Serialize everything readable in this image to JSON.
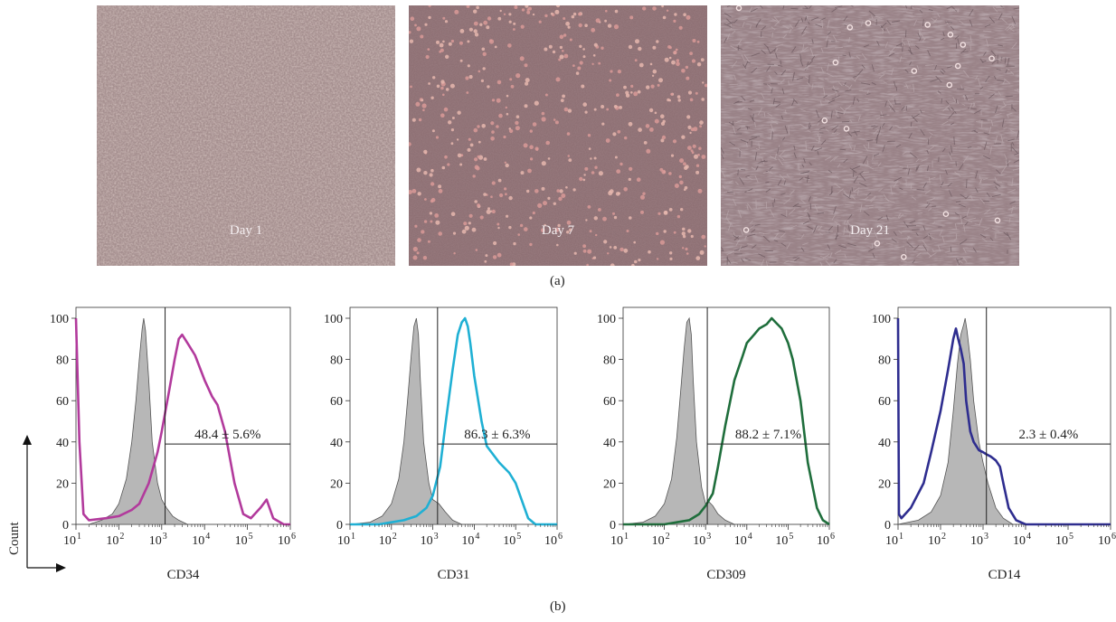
{
  "photos": [
    {
      "label": "Day 1"
    },
    {
      "label": "Day 7"
    },
    {
      "label": "Day 21"
    }
  ],
  "panel_a": "(a)",
  "panel_b": "(b)",
  "count_label": "Count",
  "colors": {
    "CD34": "#b23a9c",
    "CD31": "#1fb0d4",
    "CD309": "#1f6e3c",
    "CD14": "#2e2d8f",
    "control_fill": "#b7b7b7"
  },
  "chart_data": [
    {
      "type": "area",
      "title": "",
      "xlabel": "CD34",
      "ylabel": "Count",
      "xscale": "log",
      "xlim": [
        10,
        1000000
      ],
      "ylim": [
        0,
        100
      ],
      "x_ticks": [
        "10^1",
        "10^2",
        "10^3",
        "10^4",
        "10^5",
        "10^6"
      ],
      "y_ticks": [
        0,
        20,
        40,
        60,
        80,
        100
      ],
      "gate_x": 1200,
      "gate_y": 39,
      "annotation": "48.4 ± 5.6%",
      "color": "#b23a9c",
      "series": [
        {
          "role": "control",
          "x": [
            10,
            20,
            40,
            70,
            100,
            150,
            200,
            250,
            300,
            350,
            380,
            420,
            500,
            600,
            800,
            1000,
            1300,
            1800,
            2500,
            4000,
            10000
          ],
          "values": [
            0,
            0,
            2,
            5,
            10,
            22,
            40,
            60,
            80,
            95,
            100,
            94,
            70,
            40,
            20,
            12,
            8,
            4,
            2,
            0,
            0
          ]
        },
        {
          "role": "stain",
          "x": [
            10,
            12,
            15,
            20,
            50,
            100,
            200,
            300,
            500,
            800,
            1000,
            1500,
            2000,
            2500,
            3000,
            4000,
            6000,
            10000,
            15000,
            20000,
            30000,
            50000,
            80000,
            120000,
            200000,
            280000,
            400000,
            700000,
            1000000
          ],
          "values": [
            100,
            40,
            5,
            2,
            3,
            4,
            7,
            10,
            20,
            35,
            45,
            65,
            80,
            90,
            92,
            88,
            82,
            70,
            62,
            58,
            45,
            20,
            5,
            3,
            8,
            12,
            3,
            0,
            0
          ]
        }
      ]
    },
    {
      "type": "area",
      "title": "",
      "xlabel": "CD31",
      "ylabel": "Count",
      "xscale": "log",
      "xlim": [
        10,
        1000000
      ],
      "ylim": [
        0,
        100
      ],
      "x_ticks": [
        "10^1",
        "10^2",
        "10^3",
        "10^4",
        "10^5",
        "10^6"
      ],
      "y_ticks": [
        0,
        20,
        40,
        60,
        80,
        100
      ],
      "gate_x": 1300,
      "gate_y": 39,
      "annotation": "86.3 ± 6.3%",
      "color": "#1fb0d4",
      "series": [
        {
          "role": "control",
          "x": [
            10,
            30,
            60,
            100,
            150,
            200,
            250,
            300,
            350,
            400,
            450,
            500,
            600,
            800,
            1000,
            1400,
            2000,
            3000,
            5000,
            10000
          ],
          "values": [
            0,
            1,
            4,
            10,
            22,
            40,
            62,
            82,
            96,
            100,
            92,
            70,
            40,
            20,
            12,
            10,
            6,
            2,
            0,
            0
          ]
        },
        {
          "role": "stain",
          "x": [
            10,
            50,
            100,
            200,
            400,
            700,
            1000,
            1500,
            2000,
            3000,
            4000,
            5000,
            6000,
            7000,
            8000,
            10000,
            15000,
            20000,
            40000,
            70000,
            100000,
            150000,
            200000,
            300000,
            1000000
          ],
          "values": [
            0,
            0,
            1,
            2,
            4,
            8,
            14,
            28,
            48,
            75,
            92,
            98,
            100,
            96,
            88,
            72,
            50,
            38,
            30,
            25,
            20,
            10,
            3,
            0,
            0
          ]
        }
      ]
    },
    {
      "type": "area",
      "title": "",
      "xlabel": "CD309",
      "ylabel": "Count",
      "xscale": "log",
      "xlim": [
        10,
        1000000
      ],
      "ylim": [
        0,
        100
      ],
      "x_ticks": [
        "10^1",
        "10^2",
        "10^3",
        "10^4",
        "10^5",
        "10^6"
      ],
      "y_ticks": [
        0,
        20,
        40,
        60,
        80,
        100
      ],
      "gate_x": 1100,
      "gate_y": 39,
      "annotation": "88.2 ± 7.1%",
      "color": "#1f6e3c",
      "series": [
        {
          "role": "control",
          "x": [
            10,
            30,
            60,
            100,
            150,
            200,
            250,
            300,
            350,
            400,
            450,
            500,
            600,
            800,
            1000,
            1200,
            1500,
            2000,
            3000,
            5000,
            10000
          ],
          "values": [
            0,
            1,
            4,
            10,
            22,
            42,
            65,
            85,
            98,
            100,
            92,
            70,
            40,
            18,
            10,
            11,
            9,
            5,
            2,
            0,
            0
          ]
        },
        {
          "role": "stain",
          "x": [
            10,
            50,
            100,
            200,
            400,
            700,
            1000,
            1500,
            2000,
            3000,
            5000,
            8000,
            10000,
            15000,
            20000,
            30000,
            40000,
            50000,
            70000,
            100000,
            130000,
            200000,
            300000,
            500000,
            700000,
            1000000
          ],
          "values": [
            0,
            0,
            0,
            1,
            2,
            5,
            9,
            15,
            28,
            48,
            70,
            82,
            88,
            92,
            95,
            97,
            100,
            98,
            95,
            88,
            80,
            60,
            30,
            8,
            2,
            0
          ]
        }
      ]
    },
    {
      "type": "area",
      "title": "",
      "xlabel": "CD14",
      "ylabel": "Count",
      "xscale": "log",
      "xlim": [
        10,
        1000000
      ],
      "ylim": [
        0,
        100
      ],
      "x_ticks": [
        "10^1",
        "10^2",
        "10^3",
        "10^4",
        "10^5",
        "10^6"
      ],
      "y_ticks": [
        0,
        20,
        40,
        60,
        80,
        100
      ],
      "gate_x": 1200,
      "gate_y": 39,
      "annotation": "2.3 ± 0.4%",
      "color": "#2e2d8f",
      "series": [
        {
          "role": "control",
          "x": [
            10,
            30,
            60,
            100,
            150,
            200,
            250,
            300,
            350,
            380,
            420,
            500,
            600,
            800,
            1000,
            1300,
            2000,
            3000,
            5000,
            10000
          ],
          "values": [
            0,
            2,
            6,
            14,
            30,
            55,
            78,
            92,
            97,
            100,
            94,
            80,
            60,
            40,
            30,
            20,
            8,
            3,
            0,
            0
          ]
        },
        {
          "role": "stain",
          "x": [
            10,
            10.5,
            12,
            20,
            40,
            60,
            100,
            150,
            200,
            230,
            260,
            300,
            350,
            400,
            500,
            600,
            800,
            1000,
            1200,
            1500,
            2000,
            2500,
            3000,
            4000,
            6000,
            10000,
            1000000
          ],
          "values": [
            100,
            5,
            3,
            8,
            20,
            35,
            55,
            75,
            90,
            95,
            90,
            85,
            78,
            60,
            45,
            40,
            36,
            35,
            34,
            33,
            31,
            28,
            20,
            8,
            2,
            0,
            0
          ]
        }
      ]
    }
  ]
}
